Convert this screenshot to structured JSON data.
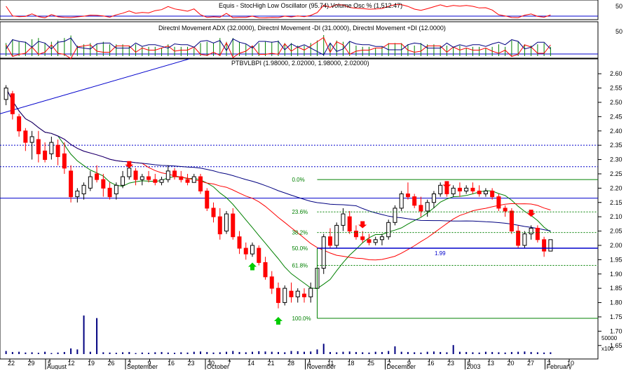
{
  "panels": {
    "stochastic": {
      "title": "Equis - StocHigh Low Oscillator (95.74) Volume Osc % (1,512.47)",
      "axis_label": "50"
    },
    "dmi": {
      "title": "Directnl Movement ADX (32.0000), Directnl Movement -DI (31.0000), Directnl Movement +DI (12.0000)",
      "axis_label": "50"
    },
    "price": {
      "title": "PTBVLBPI (1.98000, 2.02000, 1.98000, 2.02000)"
    }
  },
  "price_axis": {
    "ticks": [
      "2.60",
      "2.55",
      "2.50",
      "2.45",
      "2.40",
      "2.35",
      "2.30",
      "2.25",
      "2.20",
      "2.15",
      "2.10",
      "2.05",
      "2.00",
      "1.95",
      "1.90",
      "1.85",
      "1.80",
      "1.75",
      "1.70",
      "1.65"
    ],
    "ylim": [
      1.62,
      2.62
    ]
  },
  "volume_axis": {
    "labels": [
      "50000",
      "x100"
    ]
  },
  "fib": {
    "levels": [
      {
        "label": "0.0%",
        "value": 2.23
      },
      {
        "label": "23.6%",
        "value": 2.117
      },
      {
        "label": "38.2%",
        "value": 2.045
      },
      {
        "label": "50.0%",
        "value": 1.99
      },
      {
        "label": "61.8%",
        "value": 1.93
      },
      {
        "label": "100.0%",
        "value": 1.745
      }
    ],
    "current_label": "1.99"
  },
  "colors": {
    "up": "#ffffff",
    "down": "#ff0000",
    "ma_red": "#ff0000",
    "ma_green": "#008000",
    "ma_blue": "#000080",
    "hline": "#0000cc",
    "fib": "#008000",
    "buy_arrow": "#00cc00",
    "sell_arrow": "#ff0000"
  },
  "x_axis": {
    "days": [
      "22",
      "29",
      "5",
      "12",
      "19",
      "26",
      "2",
      "9",
      "16",
      "23",
      "30",
      "7",
      "14",
      "21",
      "28",
      "4",
      "11",
      "18",
      "25",
      "2",
      "9",
      "16",
      "23",
      "6",
      "13",
      "20",
      "27",
      "3",
      "10"
    ],
    "months": [
      "August",
      "September",
      "October",
      "November",
      "December",
      "2003",
      "February"
    ]
  },
  "chart_data": {
    "type": "candlestick",
    "title": "PTBVLBPI (1.98000, 2.02000, 1.98000, 2.02000)",
    "ohlc_last": {
      "open": 1.98,
      "high": 2.02,
      "low": 1.98,
      "close": 2.02
    },
    "ylim": [
      1.62,
      2.62
    ],
    "x_start": "2002-07-18",
    "candles": [
      [
        2.51,
        2.56,
        2.49,
        2.55
      ],
      [
        2.53,
        2.54,
        2.44,
        2.46
      ],
      [
        2.45,
        2.46,
        2.38,
        2.4
      ],
      [
        2.4,
        2.41,
        2.33,
        2.36
      ],
      [
        2.36,
        2.4,
        2.3,
        2.38
      ],
      [
        2.37,
        2.4,
        2.29,
        2.32
      ],
      [
        2.33,
        2.36,
        2.29,
        2.3
      ],
      [
        2.32,
        2.38,
        2.3,
        2.36
      ],
      [
        2.35,
        2.37,
        2.28,
        2.31
      ],
      [
        2.32,
        2.36,
        2.25,
        2.27
      ],
      [
        2.26,
        2.28,
        2.15,
        2.17
      ],
      [
        2.17,
        2.2,
        2.15,
        2.19
      ],
      [
        2.18,
        2.22,
        2.16,
        2.21
      ],
      [
        2.2,
        2.26,
        2.19,
        2.24
      ],
      [
        2.25,
        2.28,
        2.22,
        2.23
      ],
      [
        2.23,
        2.25,
        2.17,
        2.2
      ],
      [
        2.2,
        2.22,
        2.16,
        2.17
      ],
      [
        2.18,
        2.22,
        2.16,
        2.21
      ],
      [
        2.21,
        2.26,
        2.2,
        2.24
      ],
      [
        2.24,
        2.28,
        2.23,
        2.27
      ],
      [
        2.26,
        2.27,
        2.21,
        2.23
      ],
      [
        2.23,
        2.25,
        2.21,
        2.24
      ],
      [
        2.24,
        2.26,
        2.22,
        2.23
      ],
      [
        2.23,
        2.25,
        2.21,
        2.22
      ],
      [
        2.22,
        2.24,
        2.21,
        2.23
      ],
      [
        2.23,
        2.28,
        2.22,
        2.26
      ],
      [
        2.26,
        2.27,
        2.23,
        2.24
      ],
      [
        2.24,
        2.26,
        2.22,
        2.23
      ],
      [
        2.23,
        2.25,
        2.21,
        2.22
      ],
      [
        2.22,
        2.25,
        2.22,
        2.24
      ],
      [
        2.24,
        2.25,
        2.18,
        2.19
      ],
      [
        2.19,
        2.2,
        2.12,
        2.13
      ],
      [
        2.13,
        2.15,
        2.08,
        2.1
      ],
      [
        2.1,
        2.13,
        2.02,
        2.04
      ],
      [
        2.05,
        2.12,
        2.04,
        2.11
      ],
      [
        2.11,
        2.13,
        2.02,
        2.03
      ],
      [
        2.03,
        2.05,
        1.97,
        1.99
      ],
      [
        1.99,
        2.01,
        1.95,
        1.97
      ],
      [
        1.97,
        2.01,
        1.96,
        2.0
      ],
      [
        1.99,
        2.0,
        1.93,
        1.94
      ],
      [
        1.94,
        1.96,
        1.88,
        1.89
      ],
      [
        1.89,
        1.91,
        1.83,
        1.85
      ],
      [
        1.85,
        1.87,
        1.78,
        1.8
      ],
      [
        1.8,
        1.86,
        1.79,
        1.85
      ],
      [
        1.84,
        1.87,
        1.8,
        1.82
      ],
      [
        1.82,
        1.85,
        1.8,
        1.84
      ],
      [
        1.83,
        1.85,
        1.8,
        1.82
      ],
      [
        1.82,
        1.87,
        1.8,
        1.85
      ],
      [
        1.85,
        1.93,
        1.84,
        1.92
      ],
      [
        1.92,
        2.04,
        1.9,
        2.03
      ],
      [
        2.03,
        2.06,
        1.99,
        2.0
      ],
      [
        2.0,
        2.08,
        1.99,
        2.07
      ],
      [
        2.07,
        2.13,
        2.05,
        2.11
      ],
      [
        2.1,
        2.12,
        2.04,
        2.05
      ],
      [
        2.05,
        2.07,
        2.02,
        2.03
      ],
      [
        2.03,
        2.05,
        2.01,
        2.02
      ],
      [
        2.02,
        2.04,
        2.0,
        2.01
      ],
      [
        2.01,
        2.03,
        2.0,
        2.02
      ],
      [
        2.02,
        2.04,
        2.0,
        2.03
      ],
      [
        2.03,
        2.09,
        2.02,
        2.08
      ],
      [
        2.08,
        2.14,
        2.07,
        2.13
      ],
      [
        2.13,
        2.19,
        2.12,
        2.18
      ],
      [
        2.18,
        2.22,
        2.16,
        2.17
      ],
      [
        2.17,
        2.18,
        2.13,
        2.14
      ],
      [
        2.14,
        2.17,
        2.1,
        2.12
      ],
      [
        2.12,
        2.16,
        2.1,
        2.15
      ],
      [
        2.15,
        2.19,
        2.13,
        2.18
      ],
      [
        2.18,
        2.22,
        2.17,
        2.21
      ],
      [
        2.21,
        2.22,
        2.17,
        2.18
      ],
      [
        2.18,
        2.21,
        2.17,
        2.2
      ],
      [
        2.2,
        2.22,
        2.17,
        2.19
      ],
      [
        2.19,
        2.21,
        2.18,
        2.2
      ],
      [
        2.2,
        2.22,
        2.18,
        2.19
      ],
      [
        2.19,
        2.21,
        2.17,
        2.18
      ],
      [
        2.18,
        2.2,
        2.17,
        2.19
      ],
      [
        2.19,
        2.2,
        2.16,
        2.17
      ],
      [
        2.17,
        2.18,
        2.12,
        2.13
      ],
      [
        2.13,
        2.14,
        2.1,
        2.12
      ],
      [
        2.12,
        2.13,
        2.04,
        2.05
      ],
      [
        2.05,
        2.07,
        1.99,
        2.0
      ],
      [
        2.0,
        2.05,
        1.99,
        2.04
      ],
      [
        2.04,
        2.07,
        2.02,
        2.06
      ],
      [
        2.06,
        2.07,
        2.01,
        2.02
      ],
      [
        2.02,
        2.03,
        1.96,
        1.98
      ],
      [
        1.98,
        2.02,
        1.98,
        2.02
      ]
    ],
    "volume": [
      1200,
      800,
      900,
      600,
      700,
      500,
      900,
      400,
      600,
      800,
      2200,
      1800,
      15000,
      900,
      14000,
      700,
      600,
      500,
      700,
      800,
      400,
      600,
      500,
      700,
      800,
      600,
      500,
      700,
      600,
      900,
      1000,
      800,
      600,
      700,
      900,
      1200,
      800,
      700,
      900,
      1100,
      1000,
      900,
      800,
      700,
      1200,
      1100,
      900,
      1000,
      1800,
      4000,
      800,
      700,
      900,
      1000,
      800,
      700,
      600,
      900,
      800,
      1200,
      3000,
      900,
      800,
      700,
      600,
      900,
      1000,
      800,
      700,
      3500,
      900,
      800,
      700,
      600,
      900,
      800,
      700,
      600,
      800,
      900,
      1000,
      800,
      700,
      600,
      700
    ]
  }
}
